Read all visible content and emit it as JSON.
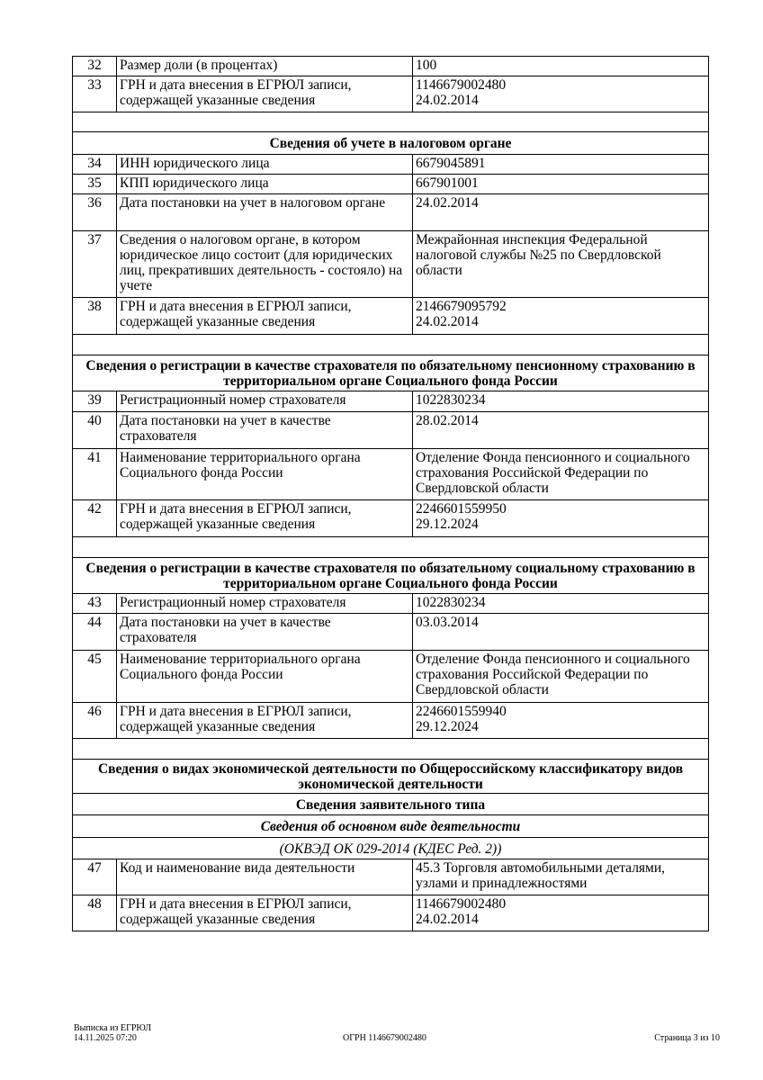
{
  "rows": [
    {
      "type": "row",
      "num": "32",
      "label": "Размер доли (в процентах)",
      "value": "100"
    },
    {
      "type": "row",
      "num": "33",
      "label": "ГРН и дата внесения в ЕГРЮЛ записи, содержащей указанные сведения",
      "value": "1146679002480\n24.02.2014"
    },
    {
      "type": "blank"
    },
    {
      "type": "header",
      "text": "Сведения об учете в налоговом органе"
    },
    {
      "type": "row",
      "num": "34",
      "label": "ИНН юридического лица",
      "value": "6679045891"
    },
    {
      "type": "row",
      "num": "35",
      "label": "КПП юридического лица",
      "value": "667901001"
    },
    {
      "type": "row",
      "num": "36",
      "label": "Дата постановки на учет в налоговом органе",
      "value": "24.02.2014"
    },
    {
      "type": "row",
      "num": "37",
      "label": "Сведения о налоговом органе, в котором юридическое лицо состоит (для юридических лиц, прекративших деятельность - состояло) на учете",
      "value": "Межрайонная инспекция Федеральной налоговой службы №25 по Свердловской области"
    },
    {
      "type": "row",
      "num": "38",
      "label": "ГРН и дата внесения в ЕГРЮЛ записи, содержащей указанные сведения",
      "value": "2146679095792\n24.02.2014"
    },
    {
      "type": "blank"
    },
    {
      "type": "header",
      "text": "Сведения о регистрации в качестве страхователя по обязательному пенсионному страхованию в территориальном органе Социального фонда России"
    },
    {
      "type": "row",
      "num": "39",
      "label": "Регистрационный номер страхователя",
      "value": "1022830234"
    },
    {
      "type": "row",
      "num": "40",
      "label": "Дата постановки на учет в качестве страхователя",
      "value": "28.02.2014"
    },
    {
      "type": "row",
      "num": "41",
      "label": "Наименование территориального органа Социального фонда России",
      "value": "Отделение Фонда пенсионного и социального страхования Российской Федерации по Свердловской области"
    },
    {
      "type": "row",
      "num": "42",
      "label": "ГРН и дата внесения в ЕГРЮЛ записи, содержащей указанные сведения",
      "value": "2246601559950\n29.12.2024"
    },
    {
      "type": "blank"
    },
    {
      "type": "header",
      "text": "Сведения о регистрации в качестве страхователя по обязательному социальному страхованию в территориальном органе Социального фонда России"
    },
    {
      "type": "row",
      "num": "43",
      "label": "Регистрационный номер страхователя",
      "value": "1022830234"
    },
    {
      "type": "row",
      "num": "44",
      "label": "Дата постановки на учет в качестве страхователя",
      "value": "03.03.2014"
    },
    {
      "type": "row",
      "num": "45",
      "label": "Наименование территориального органа Социального фонда России",
      "value": "Отделение Фонда пенсионного и социального страхования Российской Федерации по Свердловской области"
    },
    {
      "type": "row",
      "num": "46",
      "label": "ГРН и дата внесения в ЕГРЮЛ записи, содержащей указанные сведения",
      "value": "2246601559940\n29.12.2024"
    },
    {
      "type": "blank"
    },
    {
      "type": "header",
      "text": "Сведения о видах экономической деятельности по Общероссийскому классификатору видов экономической деятельности"
    },
    {
      "type": "header",
      "text": "Сведения заявительного типа"
    },
    {
      "type": "sub",
      "text": "Сведения об основном виде деятельности"
    },
    {
      "type": "sub2",
      "text": "(ОКВЭД ОК 029-2014 (КДЕС Ред. 2))"
    },
    {
      "type": "row",
      "num": "47",
      "label": "Код и наименование вида деятельности",
      "value": "45.3 Торговля автомобильными деталями, узлами и принадлежностями"
    },
    {
      "type": "row",
      "num": "48",
      "label": "ГРН и дата внесения в ЕГРЮЛ записи, содержащей указанные сведения",
      "value": "1146679002480\n24.02.2014"
    }
  ],
  "footer": {
    "doc_title": "Выписка из ЕГРЮЛ",
    "datetime": "14.11.2025 07:20",
    "ogrn": "ОГРН 1146679002480",
    "page": "Страница 3 из 10"
  }
}
